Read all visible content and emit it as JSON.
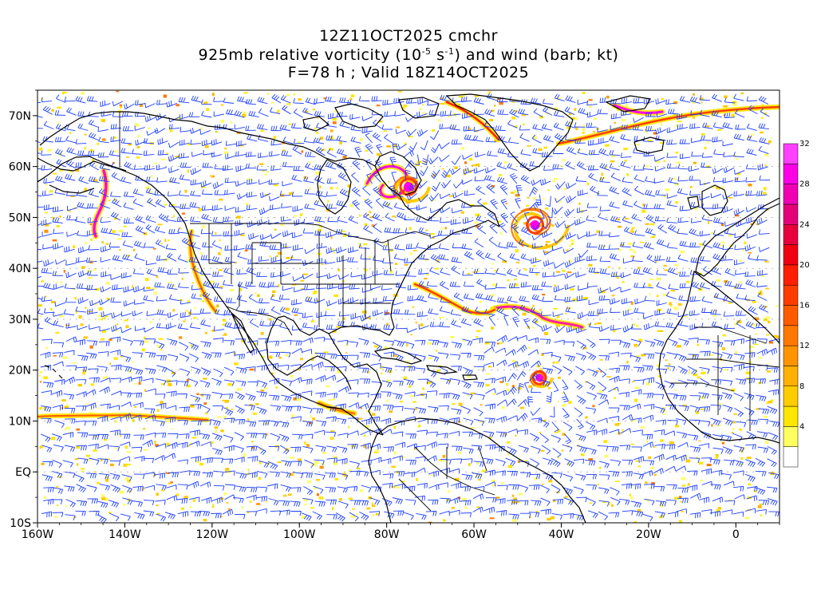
{
  "title": {
    "line1": "12Z11OCT2025 cmchr",
    "line2_prefix": "925mb relative vorticity (10",
    "line2_exp1": "-5",
    "line2_mid": " s",
    "line2_exp2": "-1",
    "line2_suffix": ") and wind (barb; kt)",
    "line3": "F=78 h ; Valid 18Z14OCT2025"
  },
  "map": {
    "lat_labels": [
      "70N",
      "60N",
      "50N",
      "40N",
      "30N",
      "20N",
      "10N",
      "EQ",
      "10S"
    ],
    "lon_labels": [
      "160W",
      "140W",
      "120W",
      "100W",
      "80W",
      "60W",
      "40W",
      "20W",
      "0"
    ],
    "lon_range": [
      -160,
      10
    ],
    "lat_range": [
      -10,
      75
    ],
    "barb_color": "#1a3cff",
    "coast_color": "#000000"
  },
  "colorbar": {
    "labels": [
      "4",
      "8",
      "12",
      "16",
      "20",
      "24",
      "28",
      "32"
    ],
    "colors": [
      "#ffffff",
      "#ffff60",
      "#ffe600",
      "#ffcc00",
      "#ffb000",
      "#ff9400",
      "#ff7800",
      "#ff5a00",
      "#ff3c00",
      "#ff1e00",
      "#f00010",
      "#e8003c",
      "#e60078",
      "#f000b4",
      "#ff00e6",
      "#ff40ff"
    ]
  },
  "chart_data": {
    "type": "map",
    "features": [
      {
        "name": "cyclone",
        "lon": -46,
        "lat": 48.5
      },
      {
        "name": "cyclone",
        "lon": -45,
        "lat": 18.5
      },
      {
        "name": "vortex",
        "lon": -75,
        "lat": 56
      }
    ]
  }
}
